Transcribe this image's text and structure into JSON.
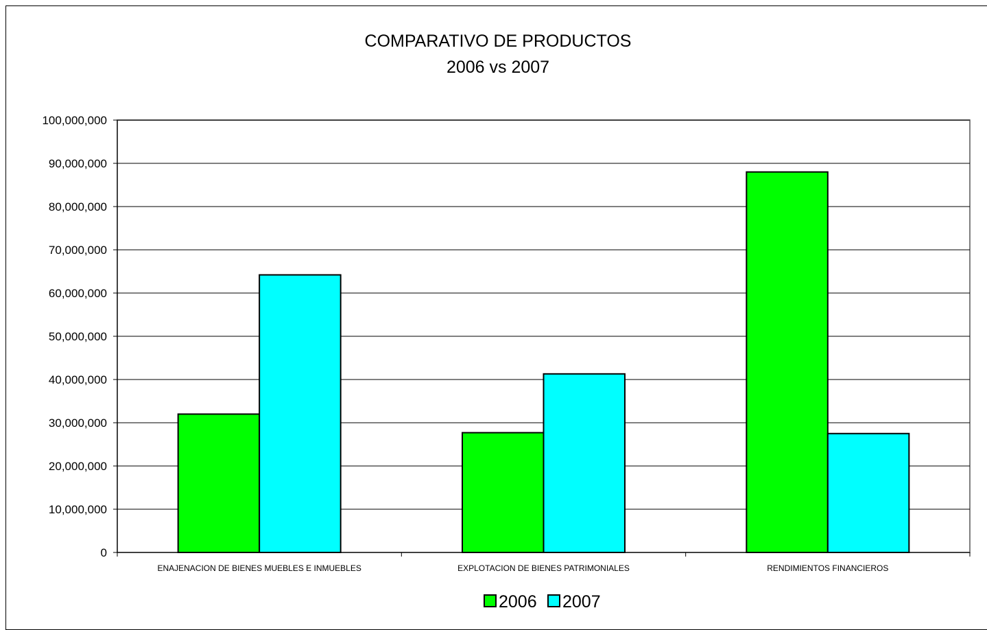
{
  "chart_data": {
    "type": "bar",
    "title": "COMPARATIVO DE PRODUCTOS",
    "subtitle": "2006 vs 2007",
    "categories": [
      "ENAJENACION DE BIENES MUEBLES E INMUEBLES",
      "EXPLOTACION DE BIENES PATRIMONIALES",
      "RENDIMIENTOS FINANCIEROS"
    ],
    "series": [
      {
        "name": "2006",
        "color": "#00ff00",
        "values": [
          32000000,
          27700000,
          88000000
        ]
      },
      {
        "name": "2007",
        "color": "#00ffff",
        "values": [
          64200000,
          41300000,
          27500000
        ]
      }
    ],
    "ylim": [
      0,
      100000000
    ],
    "yticks": [
      0,
      10000000,
      20000000,
      30000000,
      40000000,
      50000000,
      60000000,
      70000000,
      80000000,
      90000000,
      100000000
    ],
    "ytick_labels": [
      "0",
      "10,000,000",
      "20,000,000",
      "30,000,000",
      "40,000,000",
      "50,000,000",
      "60,000,000",
      "70,000,000",
      "80,000,000",
      "90,000,000",
      "100,000,000"
    ],
    "grid": true,
    "legend_position": "bottom"
  }
}
